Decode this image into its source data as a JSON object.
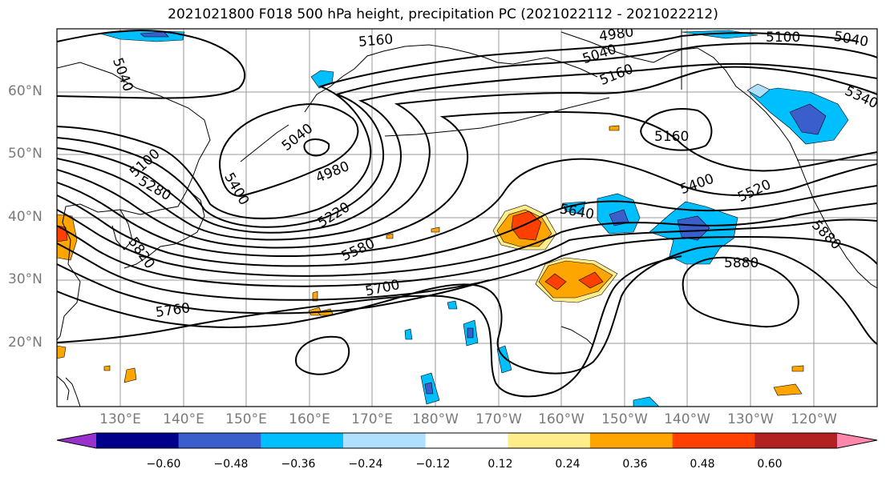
{
  "title": "2021021800 F018 500 hPa height, precipitation PC (2021022112 - 2021022212)",
  "lat_labels": [
    "60°N",
    "50°N",
    "40°N",
    "30°N",
    "20°N"
  ],
  "lon_labels": [
    "130°E",
    "140°E",
    "150°E",
    "160°E",
    "170°E",
    "180°W",
    "170°W",
    "160°W",
    "150°W",
    "140°W",
    "130°W",
    "120°W"
  ],
  "contour_labels": [
    "5160",
    "4980",
    "5040",
    "5100",
    "5040",
    "5040",
    "5160",
    "5160",
    "5040",
    "4980",
    "5100",
    "5280",
    "5400",
    "5220",
    "5580",
    "5640",
    "5400",
    "5520",
    "5340",
    "5820",
    "5700",
    "5760",
    "5880",
    "5880"
  ],
  "colorbar": {
    "ticks": [
      "−0.60",
      "−0.48",
      "−0.36",
      "−0.24",
      "−0.12",
      "0.12",
      "0.24",
      "0.36",
      "0.48",
      "0.60"
    ],
    "colors": [
      "#9932cc",
      "#00008b",
      "#3a5fcd",
      "#00bfff",
      "#b0e0ff",
      "#ffffff",
      "#ffec8b",
      "#ffa500",
      "#ff4000",
      "#b22222",
      "#ff88aa"
    ]
  }
}
